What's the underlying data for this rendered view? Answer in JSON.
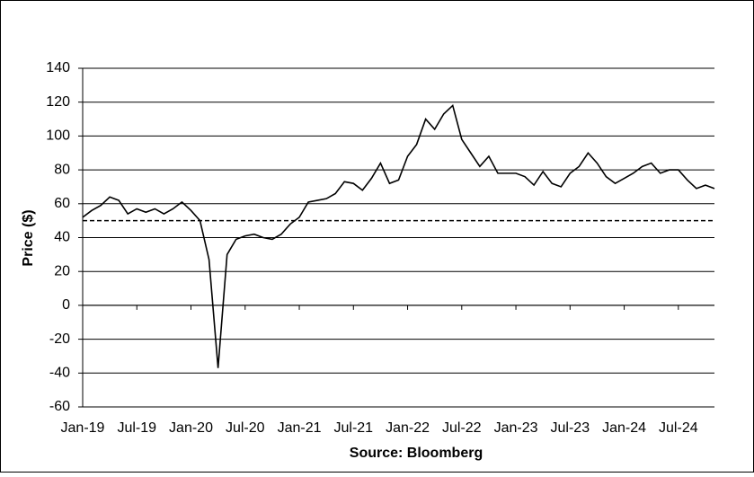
{
  "chart_data": {
    "type": "line",
    "y_label": "Price ($)",
    "x_label": "Source: Bloomberg",
    "x": [
      "2019-01",
      "2019-02",
      "2019-03",
      "2019-04",
      "2019-05",
      "2019-06",
      "2019-07",
      "2019-08",
      "2019-09",
      "2019-10",
      "2019-11",
      "2019-12",
      "2020-01",
      "2020-02",
      "2020-03",
      "2020-04",
      "2020-05",
      "2020-06",
      "2020-07",
      "2020-08",
      "2020-09",
      "2020-10",
      "2020-11",
      "2020-12",
      "2021-01",
      "2021-02",
      "2021-03",
      "2021-04",
      "2021-05",
      "2021-06",
      "2021-07",
      "2021-08",
      "2021-09",
      "2021-10",
      "2021-11",
      "2021-12",
      "2022-01",
      "2022-02",
      "2022-03",
      "2022-04",
      "2022-05",
      "2022-06",
      "2022-07",
      "2022-08",
      "2022-09",
      "2022-10",
      "2022-11",
      "2022-12",
      "2023-01",
      "2023-02",
      "2023-03",
      "2023-04",
      "2023-05",
      "2023-06",
      "2023-07",
      "2023-08",
      "2023-09",
      "2023-10",
      "2023-11",
      "2023-12",
      "2024-01",
      "2024-02",
      "2024-03",
      "2024-04",
      "2024-05",
      "2024-06",
      "2024-07",
      "2024-08",
      "2024-09",
      "2024-10",
      "2024-11"
    ],
    "series": [
      {
        "color": "#000000",
        "values": [
          52,
          56,
          59,
          64,
          62,
          54,
          57,
          55,
          57,
          54,
          57,
          61,
          56,
          50,
          27,
          -37,
          30,
          39,
          41,
          42,
          40,
          39,
          42,
          48,
          52,
          61,
          62,
          63,
          66,
          73,
          72,
          68,
          75,
          84,
          72,
          74,
          88,
          95,
          110,
          104,
          113,
          118,
          98,
          90,
          82,
          88,
          78,
          78,
          78,
          76,
          71,
          79,
          72,
          70,
          78,
          82,
          90,
          84,
          76,
          72,
          75,
          78,
          82,
          84,
          78,
          80,
          80,
          74,
          69,
          71,
          69
        ]
      }
    ],
    "reference_line": 50,
    "xlim": [
      "2019-01",
      "2024-11"
    ],
    "xticks": [
      {
        "value": "2019-01",
        "label": "Jan-19"
      },
      {
        "value": "2019-07",
        "label": "Jul-19"
      },
      {
        "value": "2020-01",
        "label": "Jan-20"
      },
      {
        "value": "2020-07",
        "label": "Jul-20"
      },
      {
        "value": "2021-01",
        "label": "Jan-21"
      },
      {
        "value": "2021-07",
        "label": "Jul-21"
      },
      {
        "value": "2022-01",
        "label": "Jan-22"
      },
      {
        "value": "2022-07",
        "label": "Jul-22"
      },
      {
        "value": "2023-01",
        "label": "Jan-23"
      },
      {
        "value": "2023-07",
        "label": "Jul-23"
      },
      {
        "value": "2024-01",
        "label": "Jan-24"
      },
      {
        "value": "2024-07",
        "label": "Jul-24"
      }
    ],
    "ylim": [
      -60,
      140
    ],
    "yticks": [
      -60,
      -40,
      -20,
      0,
      20,
      40,
      60,
      80,
      100,
      120,
      140
    ],
    "grid": true
  }
}
